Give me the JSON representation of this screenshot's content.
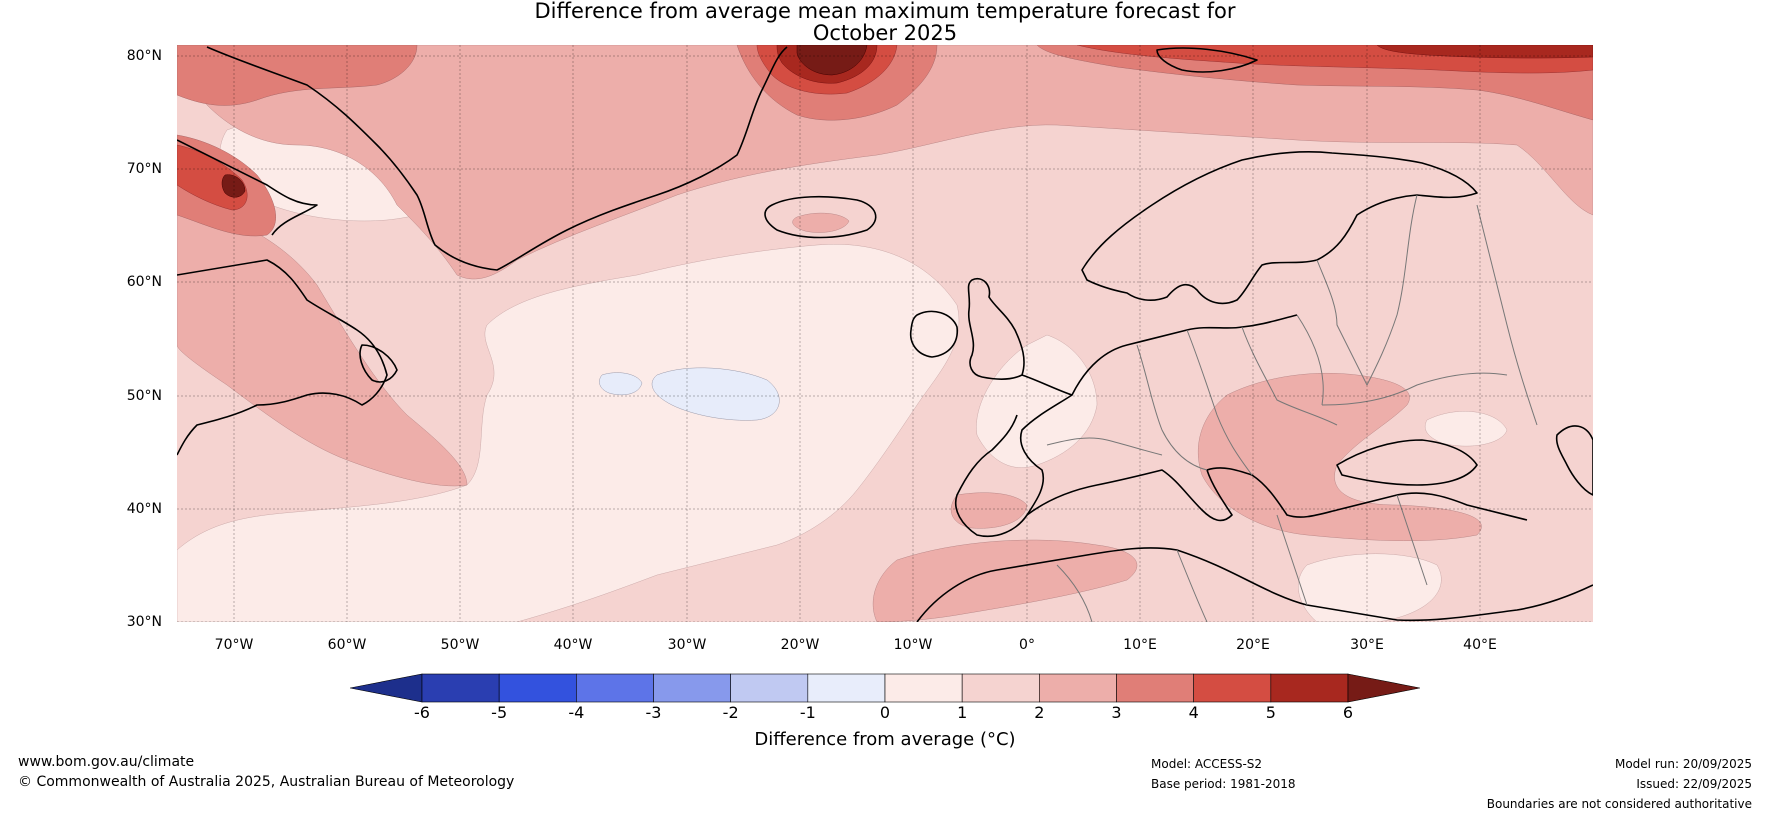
{
  "title": {
    "line1": "Difference from average mean maximum temperature forecast for",
    "line2": "October 2025"
  },
  "map": {
    "lat_labels": [
      "80°N",
      "70°N",
      "60°N",
      "50°N",
      "40°N",
      "30°N"
    ],
    "lon_labels": [
      "70°W",
      "60°W",
      "50°W",
      "40°W",
      "30°W",
      "20°W",
      "10°W",
      "0°",
      "10°E",
      "20°E",
      "30°E",
      "40°E"
    ],
    "lat_range": [
      30,
      81
    ],
    "lon_range": [
      -75,
      50
    ],
    "colors": {
      "warm_0_1": "#fcebe8",
      "warm_1_2": "#f5d3d0",
      "warm_2_3": "#edaeaa",
      "warm_3_4": "#e07e77",
      "warm_4_5": "#d44d42",
      "warm_5_6": "#a8281f",
      "warm_6_plus": "#761b16",
      "cool_0_1": "#e7ecfa",
      "coast": "#000000",
      "border": "#777777"
    }
  },
  "colorbar": {
    "ticks": [
      "-6",
      "-5",
      "-4",
      "-3",
      "-2",
      "-1",
      "0",
      "1",
      "2",
      "3",
      "4",
      "5",
      "6"
    ],
    "colors": [
      "#1d2f8c",
      "#2a3eb1",
      "#3352de",
      "#5d74e8",
      "#8799ec",
      "#c0c9f2",
      "#e8edfb",
      "#fcebe8",
      "#f5d3d0",
      "#edaeaa",
      "#e07e77",
      "#d44d42",
      "#a8281f",
      "#761b16"
    ],
    "label": "Difference from average (°C)"
  },
  "footer": {
    "website": "www.bom.gov.au/climate",
    "copyright": "© Commonwealth of Australia 2025, Australian Bureau of Meteorology",
    "model": "Model: ACCESS-S2",
    "base_period": "Base period: 1981-2018",
    "model_run": "Model run: 20/09/2025",
    "issued": "Issued: 22/09/2025",
    "disclaimer": "Boundaries are not considered authoritative"
  }
}
